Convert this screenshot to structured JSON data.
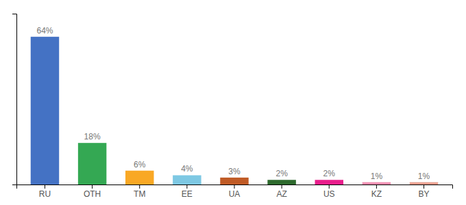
{
  "chart_data": {
    "type": "bar",
    "categories": [
      "RU",
      "OTH",
      "TM",
      "EE",
      "UA",
      "AZ",
      "US",
      "KZ",
      "BY"
    ],
    "values": [
      64,
      18,
      6,
      4,
      3,
      2,
      2,
      1,
      1
    ],
    "value_labels": [
      "64%",
      "18%",
      "6%",
      "4%",
      "3%",
      "2%",
      "2%",
      "1%",
      "1%"
    ],
    "colors": [
      "#4472C4",
      "#34A853",
      "#F9A825",
      "#7EC8E3",
      "#C05B26",
      "#2D6A2D",
      "#E91E8C",
      "#F48FB1",
      "#E8A090"
    ],
    "ylim": [
      0,
      74
    ],
    "data_labels": true,
    "tick_labels": "x",
    "grid": false
  }
}
